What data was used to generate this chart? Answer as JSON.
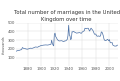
{
  "title": "Total number of marriages in the United\nKingdom over time",
  "ylabel": "thousands",
  "line_color": "#4a6fa5",
  "background_color": "#ffffff",
  "grid_color": "#cccccc",
  "years": [
    1862,
    1863,
    1864,
    1865,
    1866,
    1867,
    1868,
    1869,
    1870,
    1871,
    1872,
    1873,
    1874,
    1875,
    1876,
    1877,
    1878,
    1879,
    1880,
    1881,
    1882,
    1883,
    1884,
    1885,
    1886,
    1887,
    1888,
    1889,
    1890,
    1891,
    1892,
    1893,
    1894,
    1895,
    1896,
    1897,
    1898,
    1899,
    1900,
    1901,
    1902,
    1903,
    1904,
    1905,
    1906,
    1907,
    1908,
    1909,
    1910,
    1911,
    1912,
    1913,
    1914,
    1915,
    1916,
    1917,
    1918,
    1919,
    1920,
    1921,
    1922,
    1923,
    1924,
    1925,
    1926,
    1927,
    1928,
    1929,
    1930,
    1931,
    1932,
    1933,
    1934,
    1935,
    1936,
    1937,
    1938,
    1939,
    1940,
    1941,
    1942,
    1943,
    1944,
    1945,
    1946,
    1947,
    1948,
    1949,
    1950,
    1951,
    1952,
    1953,
    1954,
    1955,
    1956,
    1957,
    1958,
    1959,
    1960,
    1961,
    1962,
    1963,
    1964,
    1965,
    1966,
    1967,
    1968,
    1969,
    1970,
    1971,
    1972,
    1973,
    1974,
    1975,
    1976,
    1977,
    1978,
    1979,
    1980,
    1981,
    1982,
    1983,
    1984,
    1985,
    1986,
    1987,
    1988,
    1989,
    1990,
    1991,
    1992,
    1993,
    1994,
    1995,
    1996,
    1997,
    1998,
    1999,
    2000,
    2001,
    2002,
    2003,
    2004,
    2005,
    2006,
    2007,
    2008,
    2009,
    2010,
    2011,
    2012
  ],
  "values": [
    171,
    175,
    178,
    181,
    184,
    183,
    185,
    189,
    190,
    196,
    216,
    210,
    206,
    204,
    204,
    200,
    199,
    196,
    199,
    200,
    205,
    206,
    209,
    207,
    207,
    208,
    211,
    215,
    218,
    222,
    222,
    220,
    219,
    222,
    228,
    230,
    233,
    238,
    239,
    240,
    242,
    243,
    245,
    244,
    246,
    245,
    244,
    244,
    245,
    247,
    249,
    252,
    253,
    300,
    264,
    245,
    235,
    369,
    380,
    340,
    330,
    312,
    302,
    296,
    291,
    292,
    294,
    293,
    294,
    289,
    287,
    284,
    291,
    291,
    294,
    301,
    309,
    352,
    470,
    360,
    348,
    305,
    318,
    398,
    393,
    400,
    397,
    390,
    388,
    383,
    380,
    383,
    383,
    386,
    387,
    384,
    379,
    380,
    394,
    397,
    404,
    407,
    437,
    434,
    430,
    436,
    436,
    436,
    415,
    404,
    426,
    437,
    428,
    418,
    406,
    386,
    368,
    369,
    370,
    350,
    347,
    344,
    349,
    346,
    343,
    351,
    394,
    392,
    373,
    349,
    312,
    299,
    294,
    297,
    302,
    310,
    304,
    294,
    306,
    275,
    270,
    270,
    273,
    244,
    239,
    235,
    232,
    233,
    232,
    241,
    243
  ],
  "xlim": [
    1862,
    2012
  ],
  "ylim": [
    0,
    500
  ],
  "yticks": [
    100,
    200,
    300,
    400,
    500
  ],
  "ytick_labels": [
    "100",
    "200",
    "300",
    "400",
    "500"
  ],
  "xticks": [
    1880,
    1900,
    1920,
    1940,
    1960,
    1980,
    2000
  ],
  "title_fontsize": 3.8,
  "tick_fontsize": 2.8,
  "ylabel_fontsize": 2.5
}
